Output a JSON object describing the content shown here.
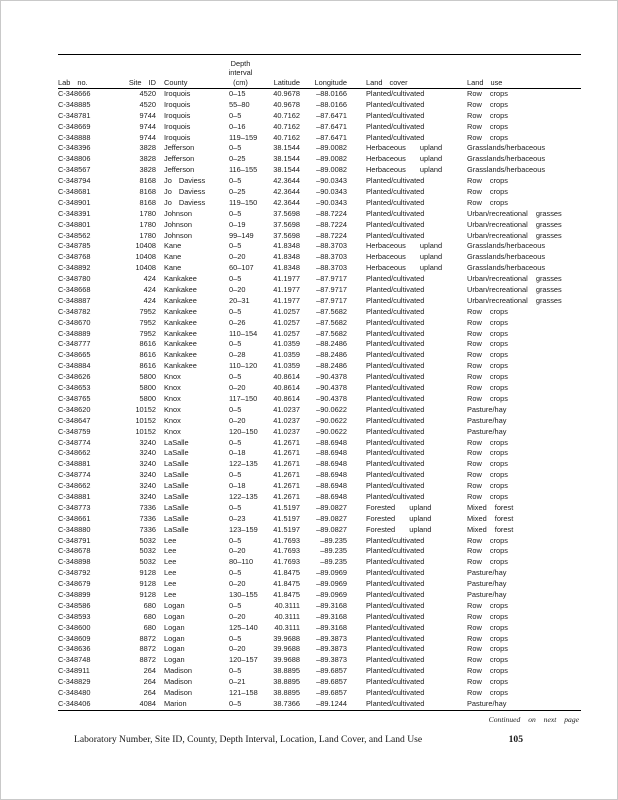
{
  "document": {
    "continued_note": "Continued on next page",
    "footer_caption": "Laboratory Number,  Site ID, County, Depth Interval, Location, Land Cover, and Land Use",
    "page_number": "105"
  },
  "table": {
    "headers": {
      "lab": "Lab no.",
      "site": "Site ID",
      "county": "County",
      "depth": [
        "Depth",
        "interval",
        "(cm)"
      ],
      "latitude": "Latitude",
      "longitude": "Longitude",
      "land_cover": "Land cover",
      "land_use": "Land use"
    },
    "rows": [
      [
        "C-348666",
        "4520",
        "Iroquois",
        "0–15",
        "40.9678",
        "–88.0166",
        "Planted/cultivated",
        "Row crops"
      ],
      [
        "C-348885",
        "4520",
        "Iroquois",
        "55–80",
        "40.9678",
        "–88.0166",
        "Planted/cultivated",
        "Row crops"
      ],
      [
        "C-348781",
        "9744",
        "Iroquois",
        "0–5",
        "40.7162",
        "–87.6471",
        "Planted/cultivated",
        "Row crops"
      ],
      [
        "C-348669",
        "9744",
        "Iroquois",
        "0–16",
        "40.7162",
        "–87.6471",
        "Planted/cultivated",
        "Row crops"
      ],
      [
        "C-348888",
        "9744",
        "Iroquois",
        "119–159",
        "40.7162",
        "–87.6471",
        "Planted/cultivated",
        "Row crops"
      ],
      [
        "C-348396",
        "3828",
        "Jefferson",
        "0–5",
        "38.1544",
        "–89.0082",
        "Herbaceous upland",
        "Grasslands/herbaceous"
      ],
      [
        "C-348806",
        "3828",
        "Jefferson",
        "0–25",
        "38.1544",
        "–89.0082",
        "Herbaceous upland",
        "Grasslands/herbaceous"
      ],
      [
        "C-348567",
        "3828",
        "Jefferson",
        "116–155",
        "38.1544",
        "–89.0082",
        "Herbaceous upland",
        "Grasslands/herbaceous"
      ],
      [
        "C-348794",
        "8168",
        "Jo Daviess",
        "0–5",
        "42.3644",
        "–90.0343",
        "Planted/cultivated",
        "Row crops"
      ],
      [
        "C-348681",
        "8168",
        "Jo Daviess",
        "0–25",
        "42.3644",
        "–90.0343",
        "Planted/cultivated",
        "Row crops"
      ],
      [
        "C-348901",
        "8168",
        "Jo Daviess",
        "119–150",
        "42.3644",
        "–90.0343",
        "Planted/cultivated",
        "Row crops"
      ],
      [
        "C-348391",
        "1780",
        "Johnson",
        "0–5",
        "37.5698",
        "–88.7224",
        "Planted/cultivated",
        "Urban/recreational grasses"
      ],
      [
        "C-348801",
        "1780",
        "Johnson",
        "0–19",
        "37.5698",
        "–88.7224",
        "Planted/cultivated",
        "Urban/recreational grasses"
      ],
      [
        "C-348562",
        "1780",
        "Johnson",
        "99–149",
        "37.5698",
        "–88.7224",
        "Planted/cultivated",
        "Urban/recreational grasses"
      ],
      [
        "C-348785",
        "10408",
        "Kane",
        "0–5",
        "41.8348",
        "–88.3703",
        "Herbaceous upland",
        "Grasslands/herbaceous"
      ],
      [
        "C-348768",
        "10408",
        "Kane",
        "0–20",
        "41.8348",
        "–88.3703",
        "Herbaceous upland",
        "Grasslands/herbaceous"
      ],
      [
        "C-348892",
        "10408",
        "Kane",
        "60–107",
        "41.8348",
        "–88.3703",
        "Herbaceous upland",
        "Grasslands/herbaceous"
      ],
      [
        "C-348780",
        "424",
        "Kankakee",
        "0–5",
        "41.1977",
        "–87.9717",
        "Planted/cultivated",
        "Urban/recreational grasses"
      ],
      [
        "C-348668",
        "424",
        "Kankakee",
        "0–20",
        "41.1977",
        "–87.9717",
        "Planted/cultivated",
        "Urban/recreational grasses"
      ],
      [
        "C-348887",
        "424",
        "Kankakee",
        "20–31",
        "41.1977",
        "–87.9717",
        "Planted/cultivated",
        "Urban/recreational grasses"
      ],
      [
        "C-348782",
        "7952",
        "Kankakee",
        "0–5",
        "41.0257",
        "–87.5682",
        "Planted/cultivated",
        "Row crops"
      ],
      [
        "C-348670",
        "7952",
        "Kankakee",
        "0–26",
        "41.0257",
        "–87.5682",
        "Planted/cultivated",
        "Row crops"
      ],
      [
        "C-348889",
        "7952",
        "Kankakee",
        "110–154",
        "41.0257",
        "–87.5682",
        "Planted/cultivated",
        "Row crops"
      ],
      [
        "C-348777",
        "8616",
        "Kankakee",
        "0–5",
        "41.0359",
        "–88.2486",
        "Planted/cultivated",
        "Row crops"
      ],
      [
        "C-348665",
        "8616",
        "Kankakee",
        "0–28",
        "41.0359",
        "–88.2486",
        "Planted/cultivated",
        "Row crops"
      ],
      [
        "C-348884",
        "8616",
        "Kankakee",
        "110–120",
        "41.0359",
        "–88.2486",
        "Planted/cultivated",
        "Row crops"
      ],
      [
        "C-348626",
        "5800",
        "Knox",
        "0–5",
        "40.8614",
        "–90.4378",
        "Planted/cultivated",
        "Row crops"
      ],
      [
        "C-348653",
        "5800",
        "Knox",
        "0–20",
        "40.8614",
        "–90.4378",
        "Planted/cultivated",
        "Row crops"
      ],
      [
        "C-348765",
        "5800",
        "Knox",
        "117–150",
        "40.8614",
        "–90.4378",
        "Planted/cultivated",
        "Row crops"
      ],
      [
        "C-348620",
        "10152",
        "Knox",
        "0–5",
        "41.0237",
        "–90.0622",
        "Planted/cultivated",
        "Pasture/hay"
      ],
      [
        "C-348647",
        "10152",
        "Knox",
        "0–20",
        "41.0237",
        "–90.0622",
        "Planted/cultivated",
        "Pasture/hay"
      ],
      [
        "C-348759",
        "10152",
        "Knox",
        "120–150",
        "41.0237",
        "–90.0622",
        "Planted/cultivated",
        "Pasture/hay"
      ],
      [
        "C-348774",
        "3240",
        "LaSalle",
        "0–5",
        "41.2671",
        "–88.6948",
        "Planted/cultivated",
        "Row crops"
      ],
      [
        "C-348662",
        "3240",
        "LaSalle",
        "0–18",
        "41.2671",
        "–88.6948",
        "Planted/cultivated",
        "Row crops"
      ],
      [
        "C-348881",
        "3240",
        "LaSalle",
        "122–135",
        "41.2671",
        "–88.6948",
        "Planted/cultivated",
        "Row crops"
      ],
      [
        "C-348774",
        "3240",
        "LaSalle",
        "0–5",
        "41.2671",
        "–88.6948",
        "Planted/cultivated",
        "Row crops"
      ],
      [
        "C-348662",
        "3240",
        "LaSalle",
        "0–18",
        "41.2671",
        "–88.6948",
        "Planted/cultivated",
        "Row crops"
      ],
      [
        "C-348881",
        "3240",
        "LaSalle",
        "122–135",
        "41.2671",
        "–88.6948",
        "Planted/cultivated",
        "Row crops"
      ],
      [
        "C-348773",
        "7336",
        "LaSalle",
        "0–5",
        "41.5197",
        "–89.0827",
        "Forested upland",
        "Mixed forest"
      ],
      [
        "C-348661",
        "7336",
        "LaSalle",
        "0–23",
        "41.5197",
        "–89.0827",
        "Forested upland",
        "Mixed forest"
      ],
      [
        "C-348880",
        "7336",
        "LaSalle",
        "123–159",
        "41.5197",
        "–89.0827",
        "Forested upland",
        "Mixed forest"
      ],
      [
        "C-348791",
        "5032",
        "Lee",
        "0–5",
        "41.7693",
        "–89.235",
        "Planted/cultivated",
        "Row crops"
      ],
      [
        "C-348678",
        "5032",
        "Lee",
        "0–20",
        "41.7693",
        "–89.235",
        "Planted/cultivated",
        "Row crops"
      ],
      [
        "C-348898",
        "5032",
        "Lee",
        "80–110",
        "41.7693",
        "–89.235",
        "Planted/cultivated",
        "Row crops"
      ],
      [
        "C-348792",
        "9128",
        "Lee",
        "0–5",
        "41.8475",
        "–89.0969",
        "Planted/cultivated",
        "Pasture/hay"
      ],
      [
        "C-348679",
        "9128",
        "Lee",
        "0–20",
        "41.8475",
        "–89.0969",
        "Planted/cultivated",
        "Pasture/hay"
      ],
      [
        "C-348899",
        "9128",
        "Lee",
        "130–155",
        "41.8475",
        "–89.0969",
        "Planted/cultivated",
        "Pasture/hay"
      ],
      [
        "C-348586",
        "680",
        "Logan",
        "0–5",
        "40.3111",
        "–89.3168",
        "Planted/cultivated",
        "Row crops"
      ],
      [
        "C-348593",
        "680",
        "Logan",
        "0–20",
        "40.3111",
        "–89.3168",
        "Planted/cultivated",
        "Row crops"
      ],
      [
        "C-348600",
        "680",
        "Logan",
        "125–140",
        "40.3111",
        "–89.3168",
        "Planted/cultivated",
        "Row crops"
      ],
      [
        "C-348609",
        "8872",
        "Logan",
        "0–5",
        "39.9688",
        "–89.3873",
        "Planted/cultivated",
        "Row crops"
      ],
      [
        "C-348636",
        "8872",
        "Logan",
        "0–20",
        "39.9688",
        "–89.3873",
        "Planted/cultivated",
        "Row crops"
      ],
      [
        "C-348748",
        "8872",
        "Logan",
        "120–157",
        "39.9688",
        "–89.3873",
        "Planted/cultivated",
        "Row crops"
      ],
      [
        "C-348911",
        "264",
        "Madison",
        "0–5",
        "38.8895",
        "–89.6857",
        "Planted/cultivated",
        "Row crops"
      ],
      [
        "C-348829",
        "264",
        "Madison",
        "0–21",
        "38.8895",
        "–89.6857",
        "Planted/cultivated",
        "Row crops"
      ],
      [
        "C-348480",
        "264",
        "Madison",
        "121–158",
        "38.8895",
        "–89.6857",
        "Planted/cultivated",
        "Row crops"
      ],
      [
        "C-348406",
        "4084",
        "Marion",
        "0–5",
        "38.7366",
        "–89.1244",
        "Planted/cultivated",
        "Pasture/hay"
      ]
    ]
  }
}
